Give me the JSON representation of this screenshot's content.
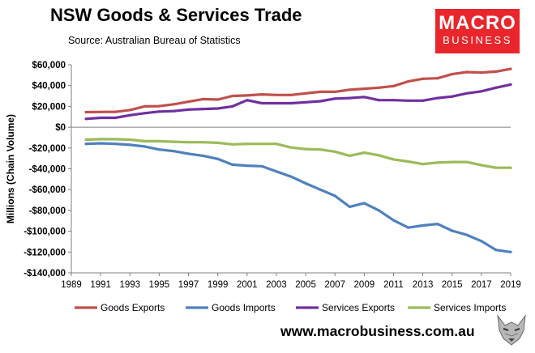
{
  "chart_data": {
    "type": "line",
    "title": "NSW Goods & Services Trade",
    "source": "Source:  Australian Bureau of Statistics",
    "ylabel": "Millions (Chain Volume)",
    "xlabel": "",
    "ylim": [
      -140000,
      60000
    ],
    "xlim": [
      1989,
      2019
    ],
    "yticks": [
      60000,
      40000,
      20000,
      0,
      -20000,
      -40000,
      -60000,
      -80000,
      -100000,
      -120000,
      -140000
    ],
    "ytick_labels": [
      "$60,000",
      "$40,000",
      "$20,000",
      "$0",
      "-$20,000",
      "-$40,000",
      "-$60,000",
      "-$80,000",
      "-$100,000",
      "-$120,000",
      "-$140,000"
    ],
    "xticks": [
      1989,
      1991,
      1993,
      1995,
      1997,
      1999,
      2001,
      2003,
      2005,
      2007,
      2009,
      2011,
      2013,
      2015,
      2017,
      2019
    ],
    "xtick_labels": [
      "1989",
      "1991",
      "1993",
      "1995",
      "1997",
      "1999",
      "2001",
      "2003",
      "2005",
      "2007",
      "2009",
      "2011",
      "2013",
      "2015",
      "2017",
      "2019"
    ],
    "x": [
      1990,
      1991,
      1992,
      1993,
      1994,
      1995,
      1996,
      1997,
      1998,
      1999,
      2000,
      2001,
      2002,
      2003,
      2004,
      2005,
      2006,
      2007,
      2008,
      2009,
      2010,
      2011,
      2012,
      2013,
      2014,
      2015,
      2016,
      2017,
      2018,
      2019
    ],
    "series": [
      {
        "name": "Goods Exports",
        "color": "#c0504d",
        "values": [
          14500,
          14600,
          14700,
          16500,
          20000,
          20200,
          22000,
          24500,
          27000,
          26500,
          30000,
          30500,
          31500,
          31000,
          31000,
          32500,
          34000,
          34000,
          36000,
          37000,
          38000,
          39500,
          44000,
          46500,
          47000,
          51000,
          53000,
          52500,
          53500,
          56000
        ]
      },
      {
        "name": "Goods Imports",
        "color": "#4f81bd",
        "values": [
          -16000,
          -15500,
          -16000,
          -17000,
          -18500,
          -21500,
          -23000,
          -25500,
          -27500,
          -30500,
          -36000,
          -37000,
          -37500,
          -42500,
          -47500,
          -54000,
          -60000,
          -66000,
          -76500,
          -73000,
          -80000,
          -89500,
          -96500,
          -94500,
          -93000,
          -99500,
          -103500,
          -109500,
          -118000,
          -120000
        ]
      },
      {
        "name": "Services Exports",
        "color": "#7030a0",
        "values": [
          8000,
          9000,
          9000,
          11500,
          13500,
          15000,
          15500,
          17000,
          17500,
          18000,
          20000,
          26000,
          23000,
          23000,
          23000,
          24000,
          25000,
          27500,
          28000,
          29000,
          26000,
          26000,
          25500,
          25500,
          28000,
          29500,
          32500,
          34500,
          38000,
          41000
        ]
      },
      {
        "name": "Services Imports",
        "color": "#9bbb59",
        "values": [
          -12000,
          -11500,
          -11500,
          -12000,
          -13500,
          -13500,
          -14000,
          -14500,
          -14500,
          -15000,
          -16500,
          -16000,
          -16000,
          -16000,
          -19500,
          -21000,
          -21500,
          -23500,
          -27500,
          -24500,
          -27000,
          -31000,
          -33000,
          -35500,
          -34000,
          -33500,
          -33500,
          -36500,
          -39000,
          -39000
        ]
      }
    ],
    "legend_position": "bottom"
  },
  "branding": {
    "logo_line1": "MACRO",
    "logo_line2": "BUSINESS",
    "website": "www.macrobusiness.com.au",
    "logo_color": "#e8262b"
  }
}
